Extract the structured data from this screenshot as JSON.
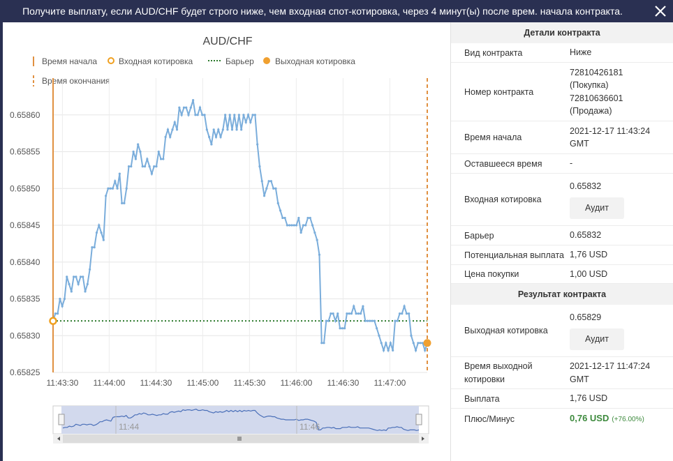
{
  "header": {
    "title": "Получите выплату, если AUD/CHF будет строго ниже, чем входная спот-котировка, через 4 минут(ы) после врем. начала контракта."
  },
  "chart_data": {
    "type": "line",
    "title": "AUD/CHF",
    "legend": [
      "Время начала",
      "Входная котировка",
      "Барьер",
      "Выходная котировка",
      "Время окончания"
    ],
    "y_ticks": [
      "0.65860",
      "0.65855",
      "0.65850",
      "0.65845",
      "0.65840",
      "0.65835",
      "0.65830",
      "0.65825"
    ],
    "ylim": [
      0.65825,
      0.65865
    ],
    "x_ticks": [
      "11:43:30",
      "11:44:00",
      "11:44:30",
      "11:45:00",
      "11:45:30",
      "11:46:00",
      "11:46:30",
      "11:47:00"
    ],
    "xlim_seconds_after_11_43": [
      24,
      264
    ],
    "start_time": "11:43:24",
    "end_time": "11:47:24",
    "barrier": 0.65832,
    "entry": 0.65832,
    "exit": 0.65829,
    "navigator_ticks": [
      "11:44",
      "11:46"
    ],
    "series": [
      {
        "color": "#7aaddb",
        "values": [
          0.65832,
          0.65833,
          0.65833,
          0.65835,
          0.65834,
          0.65835,
          0.65838,
          0.65837,
          0.65836,
          0.65838,
          0.65838,
          0.65837,
          0.65838,
          0.65838,
          0.65836,
          0.65837,
          0.65839,
          0.65842,
          0.65842,
          0.65844,
          0.65845,
          0.65844,
          0.65843,
          0.65849,
          0.6585,
          0.6585,
          0.6585,
          0.65851,
          0.6585,
          0.65852,
          0.65848,
          0.65848,
          0.6585,
          0.65853,
          0.65853,
          0.65855,
          0.65854,
          0.65856,
          0.65855,
          0.65853,
          0.65853,
          0.65854,
          0.65853,
          0.65852,
          0.65853,
          0.65853,
          0.65855,
          0.65854,
          0.65854,
          0.65857,
          0.65858,
          0.65857,
          0.65858,
          0.65859,
          0.65858,
          0.65861,
          0.6586,
          0.65861,
          0.65861,
          0.6586,
          0.65861,
          0.65862,
          0.6586,
          0.6586,
          0.65861,
          0.6586,
          0.6586,
          0.65858,
          0.65857,
          0.65856,
          0.65858,
          0.65857,
          0.65858,
          0.65857,
          0.65858,
          0.6586,
          0.65858,
          0.6586,
          0.65858,
          0.6586,
          0.65858,
          0.6586,
          0.65858,
          0.6586,
          0.65859,
          0.6586,
          0.65859,
          0.6586,
          0.6586,
          0.65856,
          0.65853,
          0.65851,
          0.65849,
          0.6585,
          0.65851,
          0.65851,
          0.6585,
          0.6585,
          0.65848,
          0.65847,
          0.65846,
          0.65846,
          0.65845,
          0.65845,
          0.65845,
          0.65845,
          0.65845,
          0.65846,
          0.65844,
          0.65845,
          0.65845,
          0.65846,
          0.65846,
          0.65845,
          0.65844,
          0.65843,
          0.65841,
          0.65829,
          0.65829,
          0.65832,
          0.65832,
          0.65833,
          0.65833,
          0.65832,
          0.65833,
          0.65831,
          0.65831,
          0.65831,
          0.65833,
          0.65833,
          0.65833,
          0.65834,
          0.65833,
          0.65833,
          0.65833,
          0.65834,
          0.65832,
          0.65832,
          0.65832,
          0.65832,
          0.65832,
          0.65831,
          0.6583,
          0.65829,
          0.65828,
          0.65829,
          0.65828,
          0.65829,
          0.65828,
          0.65832,
          0.65832,
          0.65833,
          0.65833,
          0.65834,
          0.65833,
          0.65833,
          0.6583,
          0.65829,
          0.65828,
          0.65829,
          0.65829,
          0.65829,
          0.65828,
          0.65829
        ]
      }
    ]
  },
  "details": {
    "heading": "Детали контракта",
    "rows": [
      {
        "k": "Вид контракта",
        "v": "Ниже"
      },
      {
        "k": "Номер контракта",
        "v": "72810426181 (Покупка) 72810636601 (Продажа)"
      },
      {
        "k": "Время начала",
        "v": "2021-12-17 11:43:24 GMT"
      },
      {
        "k": "Оставшееся время",
        "v": "-"
      },
      {
        "k": "Входная котировка",
        "v": "0.65832"
      },
      {
        "k": "Барьер",
        "v": "0.65832"
      },
      {
        "k": "Потенциальная выплата",
        "v": "1,76 USD"
      },
      {
        "k": "Цена покупки",
        "v": "1,00 USD"
      }
    ],
    "audit_label": "Аудит"
  },
  "result": {
    "heading": "Результат контракта",
    "rows": [
      {
        "k": "Выходная котировка",
        "v": "0.65829"
      },
      {
        "k": "Время выходной котировки",
        "v": "2021-12-17 11:47:24 GMT"
      },
      {
        "k": "Выплата",
        "v": "1,76 USD"
      },
      {
        "k": "Плюс/Минус",
        "v": "0,76 USD"
      }
    ],
    "profit_pct": "(+76.00%)",
    "audit_label": "Аудит"
  }
}
